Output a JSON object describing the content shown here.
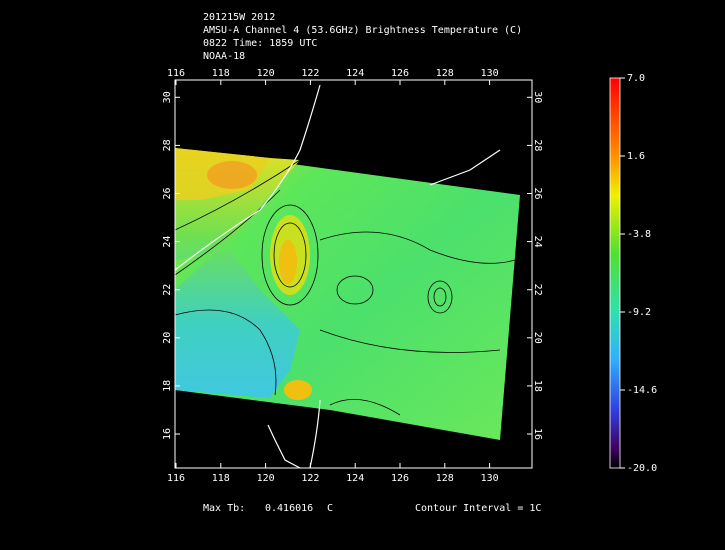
{
  "header": {
    "lines": [
      "201215W 2012",
      "AMSU-A Channel 4 (53.6GHz) Brightness Temperature (C)",
      "0822 Time: 1859 UTC",
      "NOAA-18"
    ]
  },
  "map": {
    "lon_ticks": [
      "116",
      "118",
      "120",
      "122",
      "124",
      "126",
      "128",
      "130"
    ],
    "lat_ticks": [
      "16",
      "18",
      "20",
      "22",
      "24",
      "26",
      "28",
      "30"
    ]
  },
  "colorbar": {
    "ticks": [
      "7.0",
      "1.6",
      "-3.8",
      "-9.2",
      "-14.6",
      "-20.0"
    ]
  },
  "footer": {
    "max_label": "Max Tb:",
    "max_value": "0.416016",
    "max_unit": "C",
    "contour": "Contour Interval = 1C"
  }
}
